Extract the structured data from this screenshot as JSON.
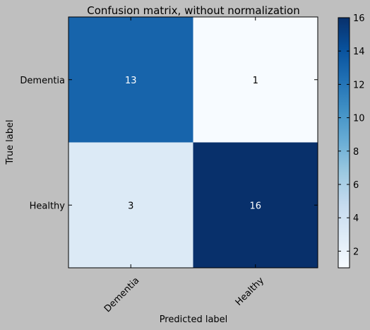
{
  "chart_data": {
    "type": "heatmap",
    "title": "Confusion matrix, without normalization",
    "xlabel": "Predicted label",
    "ylabel": "True label",
    "x_categories": [
      "Dementia",
      "Healthy"
    ],
    "y_categories": [
      "Dementia",
      "Healthy"
    ],
    "values": [
      [
        13,
        1
      ],
      [
        3,
        16
      ]
    ],
    "cell_labels": [
      [
        "13",
        "1"
      ],
      [
        "3",
        "16"
      ]
    ],
    "colormap": "Blues",
    "color_range": [
      1,
      16
    ],
    "colorbar_ticks": [
      "2",
      "4",
      "6",
      "8",
      "10",
      "12",
      "14",
      "16"
    ],
    "colors": {
      "background": "#bfbfbf",
      "cmap_low": "#f7fbff",
      "cmap_high": "#08306b",
      "text_dark": "#000000",
      "text_light": "#ffffff"
    }
  }
}
